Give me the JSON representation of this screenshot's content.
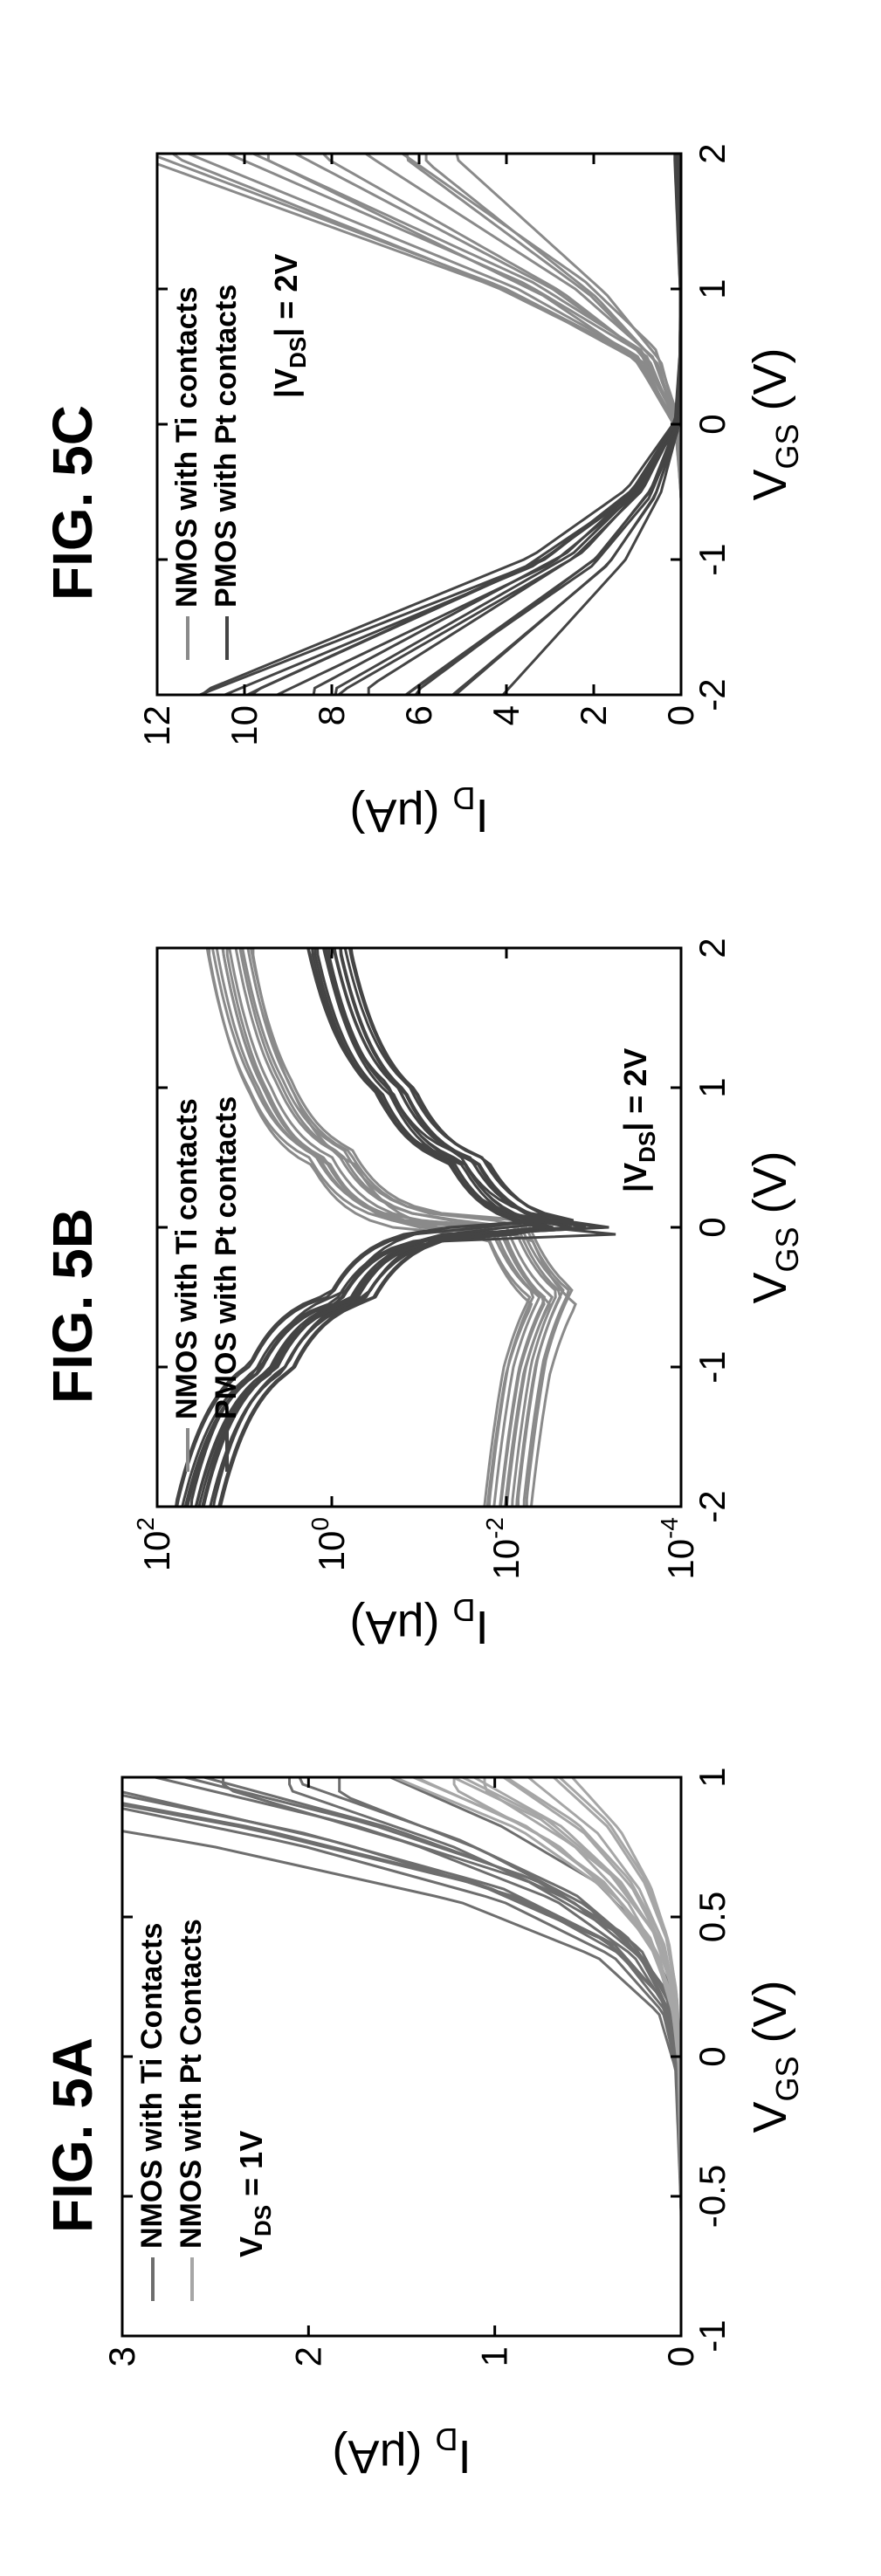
{
  "colors": {
    "nmos": "#8a8a8a",
    "pmos": "#444444",
    "pt_light": "#a6a6a6",
    "frame": "#000000"
  },
  "chart_data": [
    {
      "id": "5A",
      "title": "FIG. 5A",
      "type": "line",
      "xlabel_main": "V",
      "xlabel_sub": "GS",
      "xlabel_unit": " (V)",
      "ylabel_main": "I",
      "ylabel_sub": "D",
      "ylabel_unit": " (μA)",
      "xlim": [
        -1,
        1
      ],
      "ylim": [
        0,
        3
      ],
      "xticks": [
        -1,
        -0.5,
        0,
        0.5,
        1
      ],
      "xtick_labels": [
        "-1",
        "-0.5",
        "0",
        "0.5",
        "1"
      ],
      "yticks": [
        0,
        1,
        2,
        3
      ],
      "ytick_labels": [
        "0",
        "1",
        "2",
        "3"
      ],
      "annotation": {
        "main": "V",
        "sub": "DS",
        "rest": " = 1V"
      },
      "legend": [
        {
          "label": "NMOS with Ti Contacts",
          "color": "#6e6e6e"
        },
        {
          "label": "NMOS with Pt Contacts",
          "color": "#a6a6a6"
        }
      ],
      "series": [
        {
          "group": "Ti",
          "color": "#6e6e6e",
          "count": 14,
          "x": [
            -1,
            -0.5,
            0,
            0.2,
            0.4,
            0.6,
            0.8,
            1.0
          ],
          "y": [
            0,
            0,
            0.02,
            0.08,
            0.3,
            0.8,
            1.7,
            2.9
          ]
        },
        {
          "group": "Pt",
          "color": "#a6a6a6",
          "count": 14,
          "x": [
            -1,
            -0.5,
            0,
            0.2,
            0.4,
            0.6,
            0.8,
            1.0
          ],
          "y": [
            0,
            0,
            0.01,
            0.04,
            0.12,
            0.3,
            0.6,
            1.1
          ]
        }
      ]
    },
    {
      "id": "5B",
      "title": "FIG. 5B",
      "type": "line",
      "yscale": "log",
      "xlabel_main": "V",
      "xlabel_sub": "GS",
      "xlabel_unit": " (V)",
      "ylabel_main": "I",
      "ylabel_sub": "D",
      "ylabel_unit": " (μA)",
      "xlim": [
        -2,
        2
      ],
      "ylim": [
        0.0001,
        100
      ],
      "xticks": [
        -2,
        -1,
        0,
        1,
        2
      ],
      "xtick_labels": [
        "-2",
        "-1",
        "0",
        "1",
        "2"
      ],
      "yticks": [
        100,
        1,
        0.01,
        0.0001
      ],
      "ytick_labels": [
        {
          "base": "10",
          "exp": "2"
        },
        {
          "base": "10",
          "exp": "0"
        },
        {
          "base": "10",
          "exp": "-2"
        },
        {
          "base": "10",
          "exp": "-4"
        }
      ],
      "annotation": {
        "pre": "|V",
        "sub": "DS",
        "rest": "| = 2V"
      },
      "legend": [
        {
          "label": "NMOS with Ti contacts",
          "color": "#8a8a8a"
        },
        {
          "label": "PMOS with Pt contacts",
          "color": "#444444"
        }
      ],
      "series": [
        {
          "group": "NMOS",
          "color": "#8a8a8a",
          "count": 14,
          "x": [
            -2,
            -1,
            -0.5,
            0,
            0.5,
            1,
            2
          ],
          "y": [
            0.01,
            0.006,
            0.003,
            0.01,
            1,
            5,
            15
          ]
        },
        {
          "group": "PMOS",
          "color": "#444444",
          "count": 16,
          "x": [
            -2,
            -1,
            -0.5,
            0,
            0.5,
            1,
            2
          ],
          "y": [
            35,
            5,
            0.6,
            0.0004,
            0.03,
            0.2,
            1.1
          ]
        }
      ]
    },
    {
      "id": "5C",
      "title": "FIG. 5C",
      "type": "line",
      "xlabel_main": "V",
      "xlabel_sub": "GS",
      "xlabel_unit": " (V)",
      "ylabel_main": "I",
      "ylabel_sub": "D",
      "ylabel_unit": " (μA)",
      "xlim": [
        -2,
        2
      ],
      "ylim": [
        0,
        12
      ],
      "xticks": [
        -2,
        -1,
        0,
        1,
        2
      ],
      "xtick_labels": [
        "-2",
        "-1",
        "0",
        "1",
        "2"
      ],
      "yticks": [
        0,
        2,
        4,
        6,
        8,
        10,
        12
      ],
      "ytick_labels": [
        "0",
        "2",
        "4",
        "6",
        "8",
        "10",
        "12"
      ],
      "annotation": {
        "pre": "|V",
        "sub": "DS",
        "rest": "| = 2V"
      },
      "legend": [
        {
          "label": "NMOS with Ti contacts",
          "color": "#8a8a8a"
        },
        {
          "label": "PMOS with Pt contacts",
          "color": "#444444"
        }
      ],
      "series": [
        {
          "group": "NMOS",
          "color": "#8a8a8a",
          "count": 14,
          "x": [
            -2,
            -1,
            -0.5,
            0,
            0.5,
            1,
            2
          ],
          "y": [
            0,
            0,
            0,
            0.1,
            0.8,
            3,
            9
          ]
        },
        {
          "group": "PMOS",
          "color": "#444444",
          "count": 16,
          "x": [
            -2,
            -1,
            -0.5,
            0,
            0.5,
            1,
            2
          ],
          "y": [
            8,
            2.5,
            0.9,
            0.1,
            0.02,
            0.01,
            0.1
          ]
        }
      ]
    }
  ]
}
